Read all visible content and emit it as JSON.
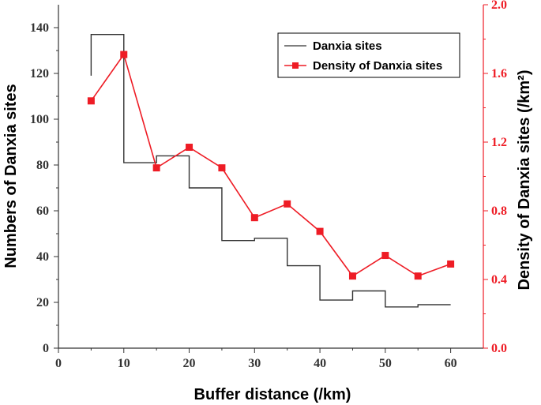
{
  "chart_data": {
    "type": "line",
    "xlabel": "Buffer distance (/km)",
    "ylabel_left": "Numbers of Danxia sites",
    "ylabel_right": "Density of Danxia sites (/km²)",
    "xlim": [
      0,
      65
    ],
    "ylim_left": [
      0,
      150
    ],
    "ylim_right": [
      0,
      2.0
    ],
    "x_ticks": [
      0,
      10,
      20,
      30,
      40,
      50,
      60
    ],
    "y_left_ticks": [
      0,
      20,
      40,
      60,
      80,
      100,
      120,
      140
    ],
    "y_right_ticks": [
      "0.0",
      "0.4",
      "0.8",
      "1.2",
      "1.6",
      "2.0"
    ],
    "x_tick_labels": [
      "0",
      "10",
      "20",
      "30",
      "40",
      "50",
      "60"
    ],
    "y_left_tick_labels": [
      "0",
      "20",
      "40",
      "60",
      "80",
      "100",
      "120",
      "140"
    ],
    "y_right_tick_labels": [
      "0.0",
      "0.4",
      "0.8",
      "1.2",
      "1.6",
      "2.0"
    ],
    "legend_position": "top-right",
    "grid": false,
    "series": [
      {
        "name": "Danxia sites",
        "axis": "left",
        "style": "step",
        "color": "#333333",
        "x": [
          5,
          10,
          15,
          20,
          25,
          30,
          35,
          40,
          45,
          50,
          55,
          60
        ],
        "y": [
          137,
          81,
          84,
          70,
          47,
          48,
          36,
          21,
          25,
          18,
          19,
          19
        ]
      },
      {
        "name": "Density of Danxia sites",
        "axis": "right",
        "style": "line-marker",
        "marker": "square",
        "color": "#ee1c25",
        "x": [
          5,
          10,
          15,
          20,
          25,
          30,
          35,
          40,
          45,
          50,
          55,
          60
        ],
        "y": [
          1.44,
          1.71,
          1.05,
          1.17,
          1.05,
          0.76,
          0.84,
          0.68,
          0.42,
          0.54,
          0.42,
          0.49
        ]
      }
    ]
  }
}
